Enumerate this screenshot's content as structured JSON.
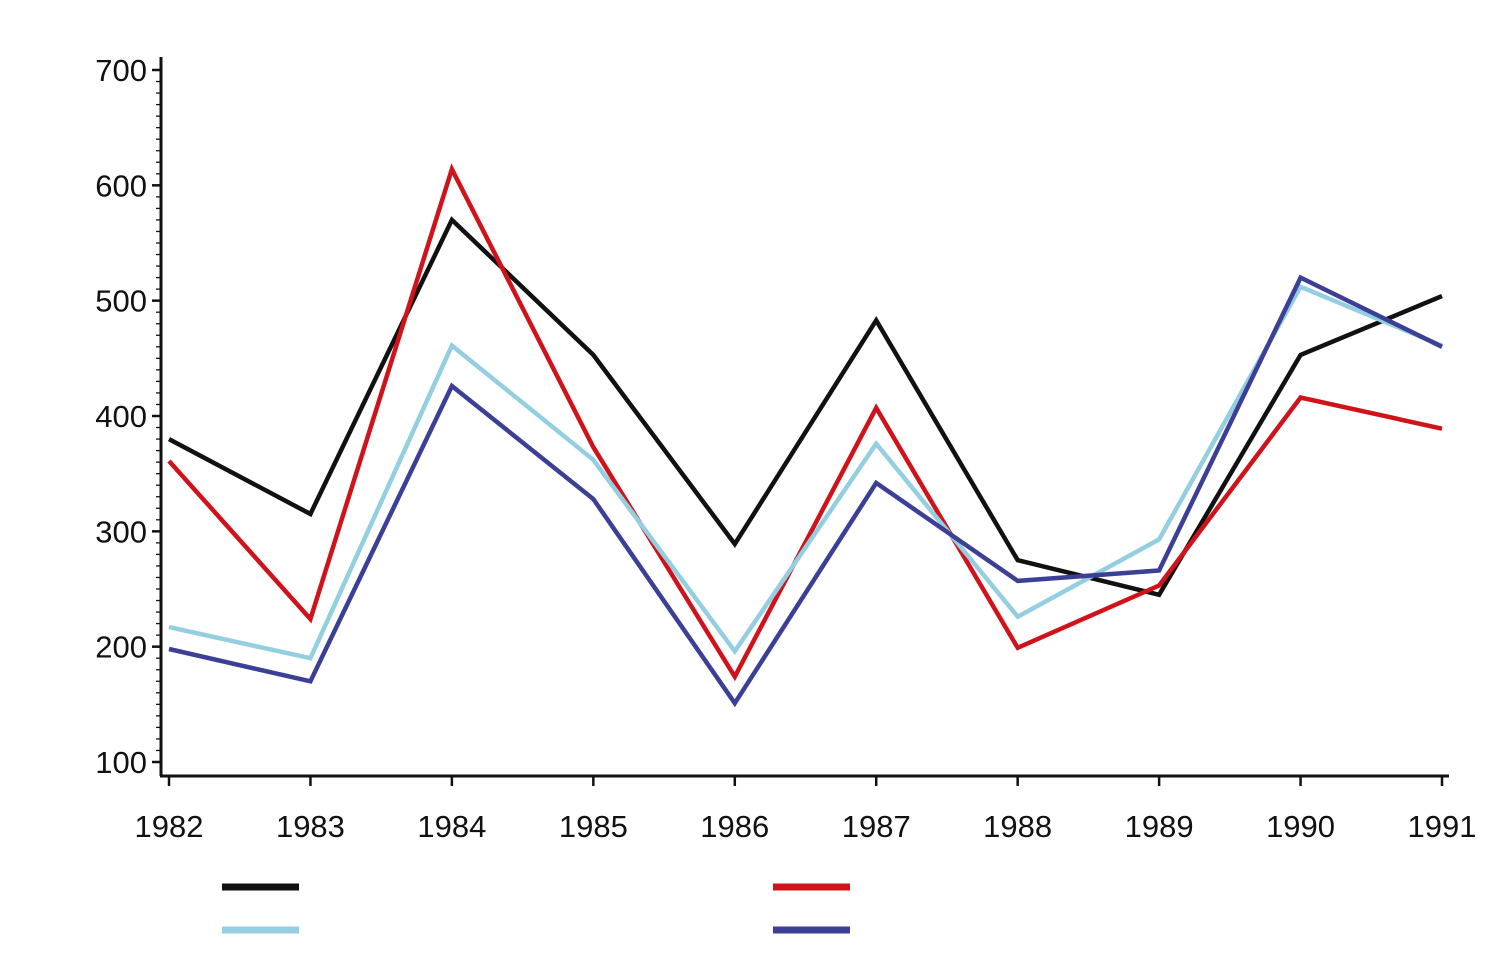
{
  "chart_data": {
    "type": "line",
    "title": "",
    "xlabel": "",
    "ylabel": "",
    "x": [
      "1982",
      "1983",
      "1984",
      "1985",
      "1986",
      "1987",
      "1988",
      "1989",
      "1990",
      "1991"
    ],
    "ylim": [
      100,
      700
    ],
    "yticks": [
      "100",
      "200",
      "300",
      "400",
      "500",
      "600",
      "700"
    ],
    "grid": false,
    "legend_position": "bottom",
    "series": [
      {
        "color": "#111111",
        "values": [
          380,
          315,
          570,
          453,
          289,
          483,
          275,
          245,
          453,
          504
        ]
      },
      {
        "color": "#d0131b",
        "values": [
          361,
          224,
          614,
          373,
          174,
          407,
          199,
          253,
          416,
          389
        ]
      },
      {
        "color": "#93cfe0",
        "values": [
          217,
          190,
          461,
          362,
          196,
          376,
          226,
          293,
          512,
          461
        ]
      },
      {
        "color": "#3b3f96",
        "values": [
          198,
          170,
          426,
          328,
          151,
          342,
          257,
          266,
          520,
          460
        ]
      }
    ]
  }
}
